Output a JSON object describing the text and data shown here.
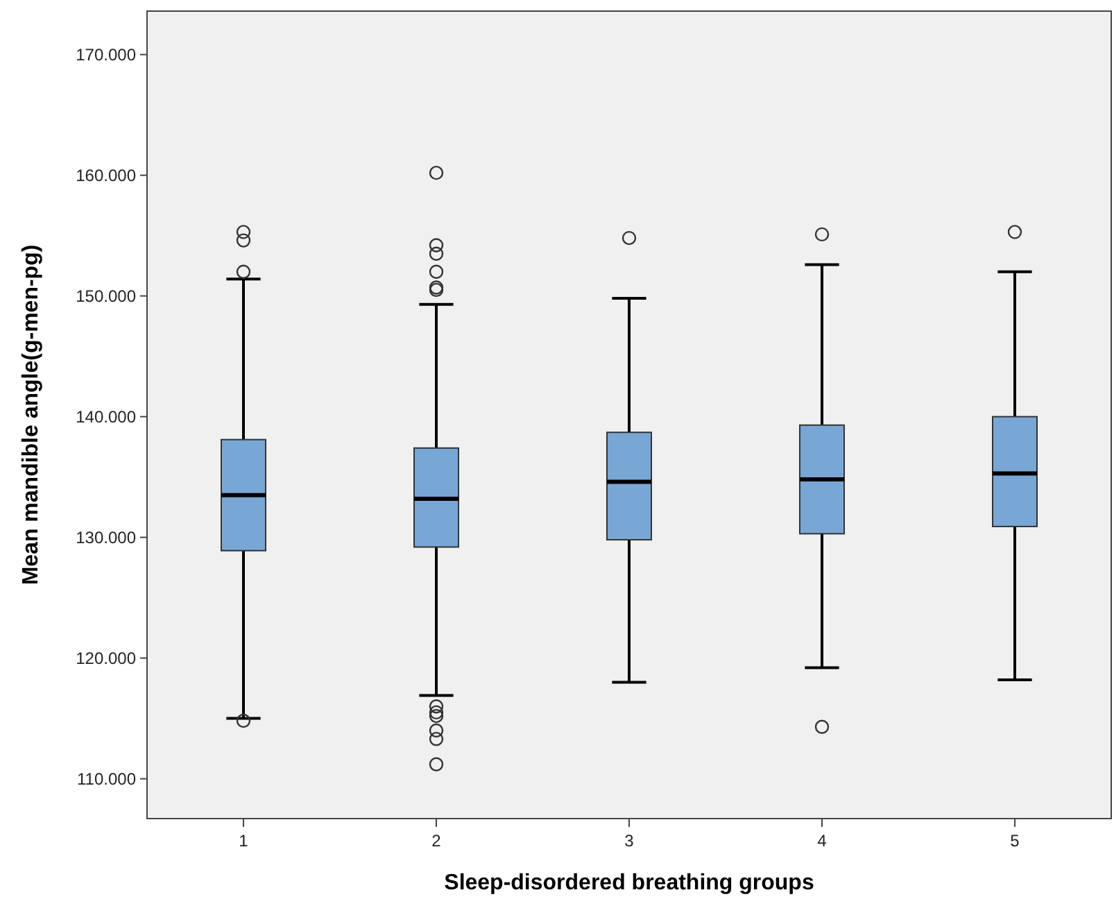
{
  "chart_data": {
    "type": "box",
    "xlabel": "Sleep-disordered breathing groups",
    "ylabel": "Mean mandible angle(g-men-pg)",
    "categories": [
      "1",
      "2",
      "3",
      "4",
      "5"
    ],
    "color": "#79a7d5",
    "ylim": [
      106.7,
      173.6
    ],
    "yticks": [
      {
        "value": 110,
        "label": "110.000"
      },
      {
        "value": 120,
        "label": "120.000"
      },
      {
        "value": 130,
        "label": "130.000"
      },
      {
        "value": 140,
        "label": "140.000"
      },
      {
        "value": 150,
        "label": "150.000"
      },
      {
        "value": 160,
        "label": "160.000"
      },
      {
        "value": 170,
        "label": "170.000"
      }
    ],
    "grid": false,
    "marker": "circle",
    "boxes": [
      {
        "low": 115.0,
        "q1": 128.9,
        "median": 133.5,
        "q3": 138.1,
        "high": 151.4,
        "outliers": [
          155.3,
          154.6,
          152.0,
          114.8
        ]
      },
      {
        "low": 116.9,
        "q1": 129.2,
        "median": 133.2,
        "q3": 137.4,
        "high": 149.3,
        "outliers": [
          160.2,
          154.2,
          153.5,
          152.0,
          150.7,
          150.5,
          116.0,
          115.5,
          115.2,
          114.0,
          113.3,
          111.2
        ]
      },
      {
        "low": 118.0,
        "q1": 129.8,
        "median": 134.6,
        "q3": 138.7,
        "high": 149.8,
        "outliers": [
          154.8
        ]
      },
      {
        "low": 119.2,
        "q1": 130.3,
        "median": 134.8,
        "q3": 139.3,
        "high": 152.6,
        "outliers": [
          155.1,
          114.3
        ]
      },
      {
        "low": 118.2,
        "q1": 130.9,
        "median": 135.3,
        "q3": 140.0,
        "high": 152.0,
        "outliers": [
          155.3
        ]
      }
    ]
  }
}
